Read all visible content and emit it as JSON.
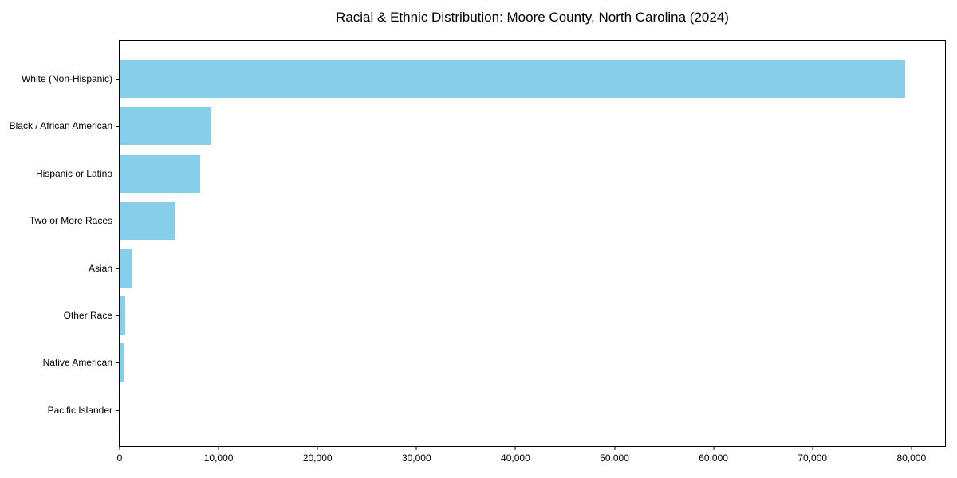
{
  "chart_data": {
    "type": "bar",
    "orientation": "horizontal",
    "title": "Racial & Ethnic Distribution: Moore County, North Carolina (2024)",
    "categories": [
      "White (Non-Hispanic)",
      "Black / African American",
      "Hispanic or Latino",
      "Two or More Races",
      "Asian",
      "Other Race",
      "Native American",
      "Pacific Islander"
    ],
    "values": [
      79400,
      9270,
      8140,
      5630,
      1290,
      560,
      380,
      60
    ],
    "xlabel": "",
    "ylabel": "",
    "xlim": [
      0,
      83400
    ],
    "xticks": [
      0,
      10000,
      20000,
      30000,
      40000,
      50000,
      60000,
      70000,
      80000
    ],
    "xtick_labels": [
      "0",
      "10,000",
      "20,000",
      "30,000",
      "40,000",
      "50,000",
      "60,000",
      "70,000",
      "80,000"
    ],
    "bar_color": "#87CEEB",
    "grid": false,
    "legend_position": "none"
  }
}
